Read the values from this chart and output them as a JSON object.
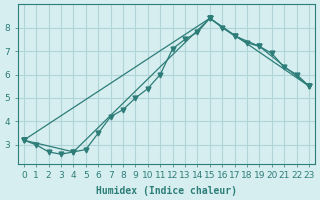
{
  "xlabel": "Humidex (Indice chaleur)",
  "ylabel": "",
  "bg_color": "#d6eef0",
  "grid_color": "#b0d4d8",
  "line_color": "#2d7d78",
  "line1_x": [
    0,
    1,
    2,
    3,
    4,
    5,
    6,
    7,
    8,
    9,
    10,
    11,
    12,
    13,
    14,
    15,
    16,
    17,
    18,
    19,
    20,
    21,
    22,
    23
  ],
  "line1_y": [
    3.2,
    3.0,
    2.7,
    2.6,
    2.7,
    2.8,
    3.5,
    4.2,
    4.5,
    5.0,
    5.4,
    6.0,
    7.1,
    7.5,
    7.8,
    8.4,
    8.0,
    7.65,
    7.35,
    7.2,
    6.9,
    6.3,
    6.0,
    5.5
  ],
  "line2_x": [
    0,
    15,
    17,
    19,
    23
  ],
  "line2_y": [
    3.2,
    8.4,
    7.65,
    7.2,
    5.5
  ],
  "line3_x": [
    0,
    4,
    15,
    23
  ],
  "line3_y": [
    3.2,
    2.7,
    8.4,
    5.5
  ],
  "xlim": [
    -0.5,
    23.5
  ],
  "ylim": [
    2.2,
    9.0
  ],
  "yticks": [
    3,
    4,
    5,
    6,
    7,
    8
  ],
  "xticks": [
    0,
    1,
    2,
    3,
    4,
    5,
    6,
    7,
    8,
    9,
    10,
    11,
    12,
    13,
    14,
    15,
    16,
    17,
    18,
    19,
    20,
    21,
    22,
    23
  ]
}
